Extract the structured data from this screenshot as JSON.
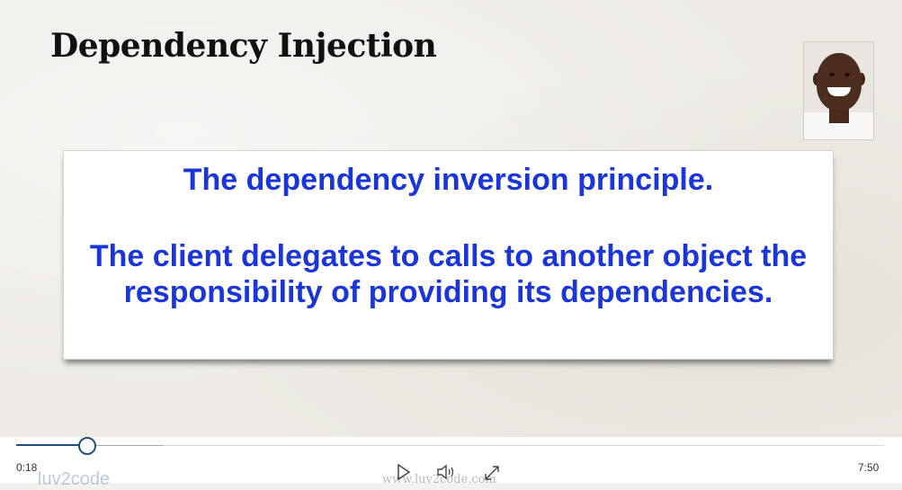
{
  "slide": {
    "title": "Dependency Injection",
    "callout_line1": "The dependency inversion principle.",
    "callout_line2": "The client delegates to calls to another object the responsibility of providing its dependencies."
  },
  "player": {
    "current_time": "0:18",
    "duration": "7:50",
    "progress_fraction": 0.04,
    "watermark_logo": "luv2code",
    "watermark_url": "www.luv2code.com",
    "icons": [
      "play-icon",
      "volume-icon",
      "fullscreen-icon"
    ],
    "accent_color": "#1f4e79"
  }
}
